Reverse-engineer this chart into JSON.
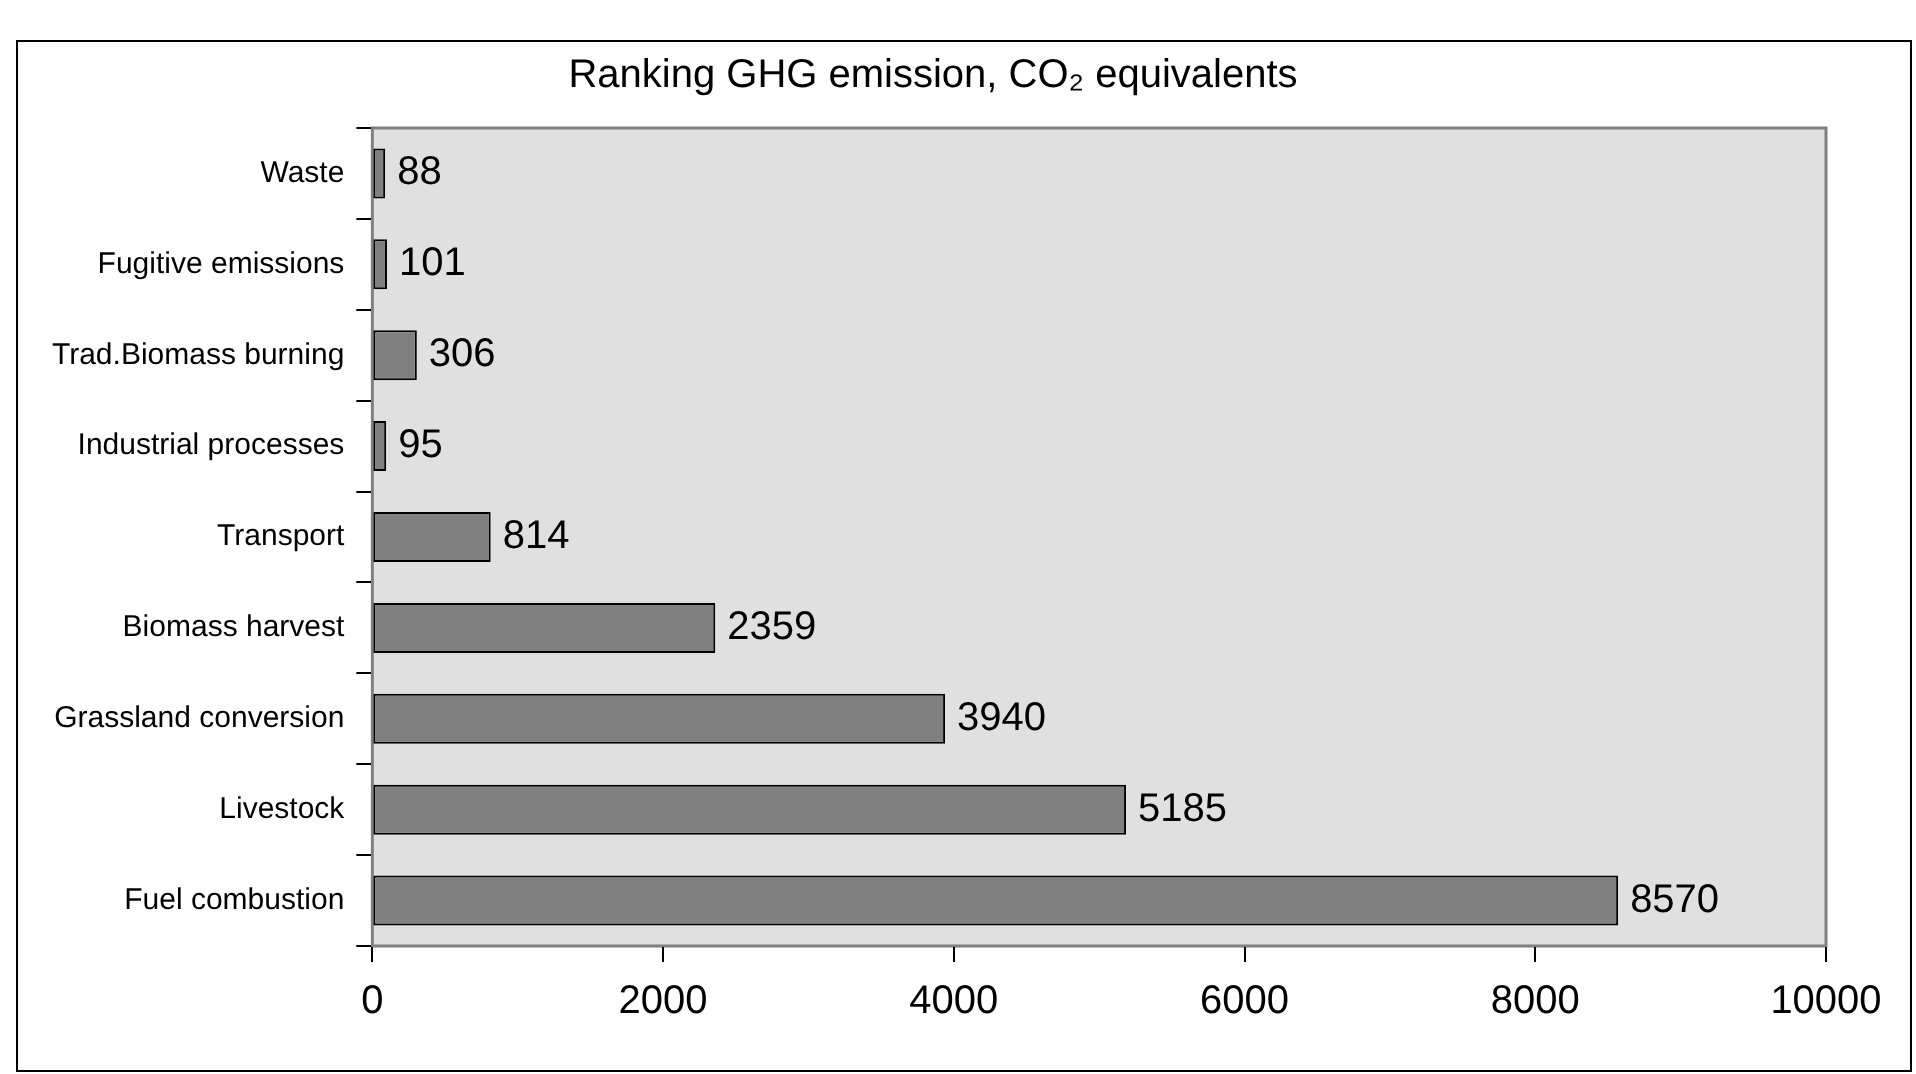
{
  "chart_data": {
    "type": "bar",
    "orientation": "horizontal",
    "title": "Ranking GHG emission, CO₂ equivalents",
    "categories": [
      "Waste",
      "Fugitive emissions",
      "Trad.Biomass burning",
      "Industrial processes",
      "Transport",
      "Biomass harvest",
      "Grassland conversion",
      "Livestock",
      "Fuel combustion"
    ],
    "values": [
      88,
      101,
      306,
      95,
      814,
      2359,
      3940,
      5185,
      8570
    ],
    "color": "#808080",
    "xlim": [
      0,
      10000
    ],
    "xticks": [
      0,
      2000,
      4000,
      6000,
      8000,
      10000
    ],
    "data_labels": true,
    "grid": false,
    "legend": false
  }
}
